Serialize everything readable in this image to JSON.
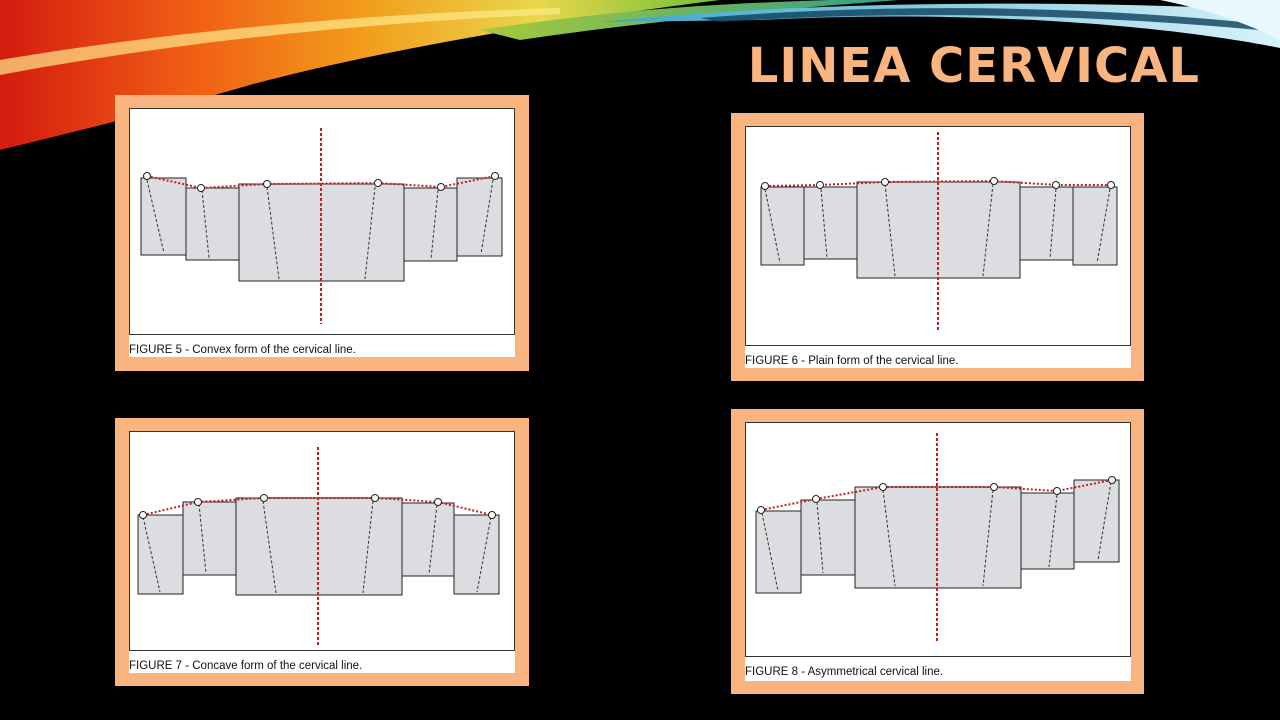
{
  "slide": {
    "title": "LINEA CERVICAL"
  },
  "colors": {
    "accent": "#f9b47f",
    "guide_line": "#c02020",
    "tooth_fill": "#dcdde0",
    "background": "#000000"
  },
  "figures": [
    {
      "caption": "FIGURE 5 - Convex form of the cervical line."
    },
    {
      "caption": "FIGURE 6 - Plain form of the cervical line."
    },
    {
      "caption": "FIGURE 7 - Concave form of the cervical line."
    },
    {
      "caption": "FIGURE 8 - Asymmetrical cervical line."
    }
  ]
}
